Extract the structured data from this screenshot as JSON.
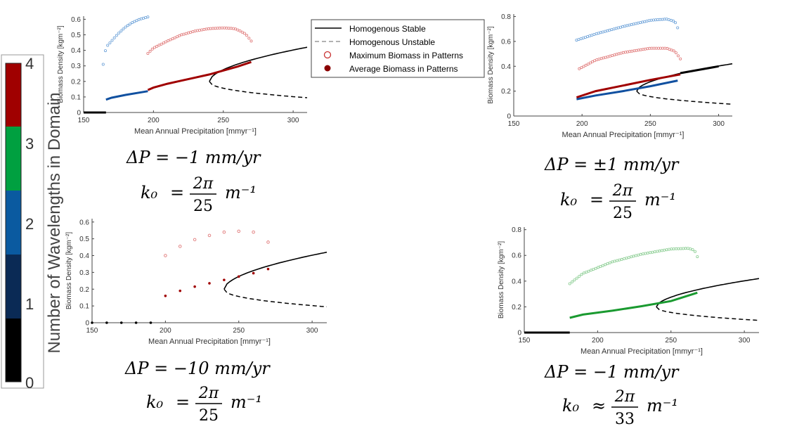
{
  "colorbar": {
    "label": "Number of Wavelengths in Domain",
    "ticks": [
      "0",
      "1",
      "2",
      "3",
      "4"
    ],
    "colors": [
      "#000000",
      "#0a2a55",
      "#0a5aa0",
      "#00a040",
      "#a00000"
    ]
  },
  "legend": {
    "items": [
      {
        "label": "Homogenous Stable",
        "style": "solid-line"
      },
      {
        "label": "Homogenous Unstable",
        "style": "dashed-line"
      },
      {
        "label": "Maximum Biomass in Patterns",
        "style": "open-circle"
      },
      {
        "label": "Average Biomass in Patterns",
        "style": "filled-circle"
      }
    ]
  },
  "annotations": [
    {
      "dp_lhs": "ΔP",
      "dp_rhs": "−1 mm/yr",
      "k_lhs": "k₀",
      "k_rel": "=",
      "k_num": "2π",
      "k_den": "25",
      "k_unit": "m⁻¹"
    },
    {
      "dp_lhs": "ΔP",
      "dp_rhs": "±1 mm/yr",
      "k_lhs": "k₀",
      "k_rel": "=",
      "k_num": "2π",
      "k_den": "25",
      "k_unit": "m⁻¹"
    },
    {
      "dp_lhs": "ΔP",
      "dp_rhs": "−10 mm/yr",
      "k_lhs": "k₀",
      "k_rel": "=",
      "k_num": "2π",
      "k_den": "25",
      "k_unit": "m⁻¹"
    },
    {
      "dp_lhs": "ΔP",
      "dp_rhs": "−1 mm/yr",
      "k_lhs": "k₀",
      "k_rel": "≈",
      "k_num": "2π",
      "k_den": "33",
      "k_unit": "m⁻¹"
    }
  ],
  "chart_data": [
    {
      "type": "line",
      "xlabel": "Mean Annual Precipitation [mmyr⁻¹]",
      "ylabel": "Biomass Density [kgm⁻²]",
      "xlim": [
        150,
        310
      ],
      "ylim": [
        0,
        0.62
      ],
      "xticks": [
        150,
        200,
        250,
        300
      ],
      "yticks": [
        0,
        0.1,
        0.2,
        0.3,
        0.4,
        0.5,
        0.6
      ],
      "series": [
        {
          "kind": "zero",
          "color": "#000000",
          "x": [
            150,
            166
          ]
        },
        {
          "kind": "avg",
          "color": "#1050a0",
          "x": [
            166,
            170,
            180,
            190,
            196
          ],
          "y": [
            0.083,
            0.095,
            0.113,
            0.128,
            0.137
          ]
        },
        {
          "kind": "max",
          "color": "#6aa0d8",
          "x": [
            164,
            166,
            170,
            175,
            180,
            185,
            190,
            196
          ],
          "y": [
            0.31,
            0.42,
            0.46,
            0.51,
            0.55,
            0.58,
            0.6,
            0.615
          ]
        },
        {
          "kind": "avg",
          "color": "#a00000",
          "x": [
            196,
            200,
            210,
            220,
            230,
            240,
            250,
            260,
            270
          ],
          "y": [
            0.145,
            0.16,
            0.185,
            0.205,
            0.225,
            0.245,
            0.27,
            0.295,
            0.325
          ]
        },
        {
          "kind": "max",
          "color": "#e07878",
          "x": [
            196,
            200,
            210,
            220,
            230,
            240,
            250,
            258,
            262,
            266,
            270
          ],
          "y": [
            0.38,
            0.415,
            0.46,
            0.5,
            0.525,
            0.54,
            0.545,
            0.54,
            0.525,
            0.505,
            0.46
          ]
        }
      ]
    },
    {
      "type": "line",
      "xlabel": "Mean Annual Precipitation [mmyr⁻¹]",
      "ylabel": "Biomass Density [kgm⁻²]",
      "xlim": [
        150,
        310
      ],
      "ylim": [
        0,
        0.82
      ],
      "xticks": [
        150,
        200,
        250,
        300
      ],
      "yticks": [
        0,
        0.2,
        0.4,
        0.6,
        0.8
      ],
      "series": [
        {
          "kind": "avg",
          "color": "#1050a0",
          "x": [
            196,
            210,
            230,
            250,
            270
          ],
          "y": [
            0.135,
            0.165,
            0.2,
            0.24,
            0.285
          ]
        },
        {
          "kind": "avg",
          "color": "#a00000",
          "x": [
            196,
            210,
            230,
            250,
            272
          ],
          "y": [
            0.15,
            0.2,
            0.245,
            0.29,
            0.335
          ]
        },
        {
          "kind": "max",
          "color": "#6aa0d8",
          "x": [
            196,
            210,
            230,
            250,
            262,
            268,
            270
          ],
          "y": [
            0.61,
            0.66,
            0.72,
            0.77,
            0.78,
            0.76,
            0.71
          ]
        },
        {
          "kind": "max",
          "color": "#e07878",
          "x": [
            198,
            210,
            230,
            250,
            262,
            268,
            272
          ],
          "y": [
            0.38,
            0.45,
            0.51,
            0.545,
            0.545,
            0.52,
            0.46
          ]
        },
        {
          "kind": "stable-bold",
          "color": "#000000",
          "x": [
            272,
            300
          ],
          "y": [
            0.345,
            0.4
          ]
        }
      ]
    },
    {
      "type": "scatter",
      "xlabel": "Mean Annual Precipitation [mmyr⁻¹]",
      "ylabel": "Biomass Density [kgm⁻²]",
      "xlim": [
        150,
        310
      ],
      "ylim": [
        0,
        0.62
      ],
      "xticks": [
        150,
        200,
        250,
        300
      ],
      "yticks": [
        0,
        0.1,
        0.2,
        0.3,
        0.4,
        0.5,
        0.6
      ],
      "series": [
        {
          "kind": "zero-pts",
          "color": "#000000",
          "x": [
            150,
            160,
            170,
            180,
            190
          ],
          "y": [
            0,
            0,
            0,
            0,
            0
          ]
        },
        {
          "kind": "avg-pts",
          "color": "#a00000",
          "x": [
            200,
            210,
            220,
            230,
            240,
            250,
            260,
            270
          ],
          "y": [
            0.16,
            0.19,
            0.215,
            0.235,
            0.255,
            0.275,
            0.295,
            0.32
          ]
        },
        {
          "kind": "max-pts",
          "color": "#e07878",
          "x": [
            200,
            210,
            220,
            230,
            240,
            250,
            260,
            270
          ],
          "y": [
            0.4,
            0.455,
            0.495,
            0.52,
            0.54,
            0.545,
            0.54,
            0.48
          ]
        }
      ]
    },
    {
      "type": "line",
      "xlabel": "Mean Annual Precipitation [mmyr⁻¹]",
      "ylabel": "Biomass Density [kgm⁻²]",
      "xlim": [
        150,
        310
      ],
      "ylim": [
        0,
        0.82
      ],
      "xticks": [
        150,
        200,
        250,
        300
      ],
      "yticks": [
        0,
        0.2,
        0.4,
        0.6,
        0.8
      ],
      "series": [
        {
          "kind": "zero",
          "color": "#000000",
          "x": [
            150,
            181
          ]
        },
        {
          "kind": "avg",
          "color": "#1a9a30",
          "x": [
            181,
            190,
            210,
            230,
            250,
            268
          ],
          "y": [
            0.115,
            0.14,
            0.17,
            0.205,
            0.245,
            0.31
          ]
        },
        {
          "kind": "max",
          "color": "#88cc90",
          "x": [
            181,
            190,
            210,
            230,
            250,
            262,
            266,
            268
          ],
          "y": [
            0.38,
            0.46,
            0.55,
            0.61,
            0.65,
            0.655,
            0.64,
            0.59
          ]
        }
      ]
    }
  ]
}
